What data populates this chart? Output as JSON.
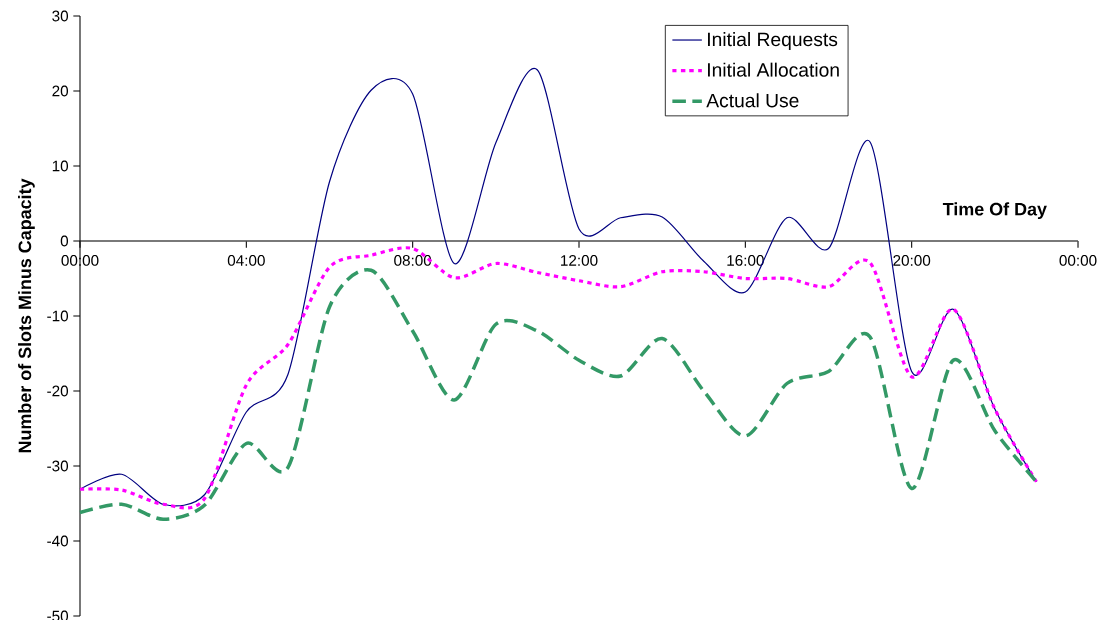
{
  "chart_data": {
    "type": "line",
    "xlabel": "Time Of Day",
    "ylabel": "Number of Slots Minus Capacity",
    "x": [
      0,
      1,
      2,
      3,
      4,
      5,
      6,
      7,
      8,
      9,
      10,
      11,
      12,
      13,
      14,
      15,
      16,
      17,
      18,
      19,
      20,
      21,
      22,
      23
    ],
    "series": [
      {
        "name": "Initial Requests",
        "color": "#000080",
        "line_style": "solid",
        "values": [
          -33.1,
          -31.1,
          -35.1,
          -33.8,
          -22.8,
          -17.8,
          7.9,
          20.1,
          19.6,
          -3.0,
          13.1,
          22.8,
          1.6,
          3.1,
          3.2,
          -2.7,
          -6.8,
          3.1,
          -1.0,
          13.2,
          -17.4,
          -9.1,
          -22.4,
          -32.1
        ]
      },
      {
        "name": "Initial Allocation",
        "color": "#ff00ff",
        "line_style": "dotted",
        "values": [
          -33.1,
          -33.2,
          -35.1,
          -34.3,
          -19.2,
          -13.8,
          -3.5,
          -1.9,
          -1.0,
          -4.9,
          -3.0,
          -4.2,
          -5.3,
          -6.1,
          -4.1,
          -4.1,
          -5.0,
          -5.0,
          -6.1,
          -2.9,
          -18.1,
          -9.1,
          -22.4,
          -32.1
        ]
      },
      {
        "name": "Actual Use",
        "color": "#339966",
        "line_style": "dashed",
        "values": [
          -36.2,
          -35.1,
          -37.1,
          -35.2,
          -27.0,
          -30.2,
          -8.8,
          -3.9,
          -12.0,
          -21.2,
          -11.1,
          -12.0,
          -15.9,
          -18.0,
          -13.0,
          -20.0,
          -26.0,
          -19.0,
          -17.4,
          -12.8,
          -33.0,
          -15.9,
          -25.3,
          -32.1
        ]
      }
    ],
    "xlim": [
      0,
      24
    ],
    "xticks": [
      {
        "value": 0,
        "label": "00:00"
      },
      {
        "value": 4,
        "label": "04:00"
      },
      {
        "value": 8,
        "label": "08:00"
      },
      {
        "value": 12,
        "label": "12:00"
      },
      {
        "value": 16,
        "label": "16:00"
      },
      {
        "value": 20,
        "label": "20:00"
      },
      {
        "value": 24,
        "label": "00:00"
      }
    ],
    "ylim": [
      -50,
      30
    ],
    "yticks": [
      -50,
      -40,
      -30,
      -20,
      -10,
      0,
      10,
      20,
      30
    ],
    "grid": false,
    "legend": "top right",
    "marker": "none"
  }
}
